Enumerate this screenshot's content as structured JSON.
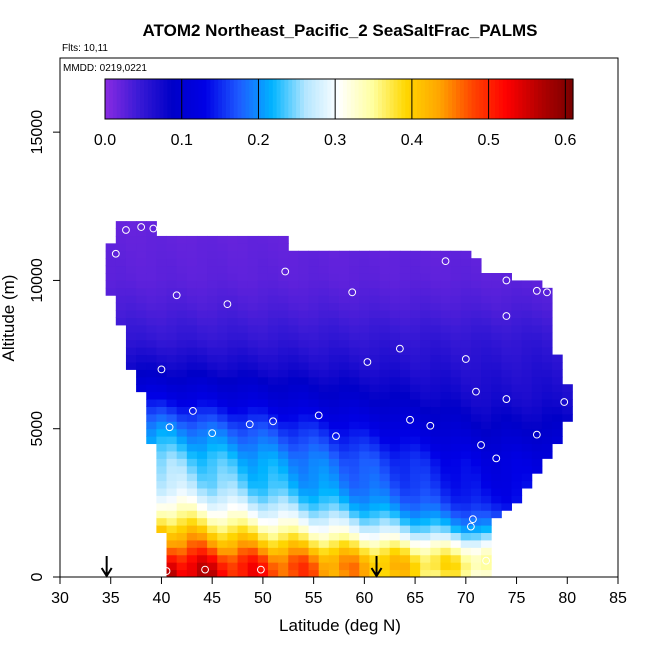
{
  "chart_data": {
    "type": "heatmap",
    "title": "ATOM2 Northeast_Pacific_2 SeaSaltFrac_PALMS",
    "flights_label": "Flts: 10,11",
    "dates_label": "MMDD: 0219,0221",
    "xlabel": "Latitude (deg N)",
    "ylabel": "Altitude (m)",
    "xlim": [
      30,
      85
    ],
    "ylim": [
      0,
      17500
    ],
    "x_ticks": [
      30,
      35,
      40,
      45,
      50,
      55,
      60,
      65,
      70,
      75,
      80,
      85
    ],
    "x_tick_labels": [
      "30",
      "35",
      "40",
      "45",
      "50",
      "55",
      "60",
      "65",
      "70",
      "75",
      "80",
      "85"
    ],
    "y_ticks": [
      0,
      5000,
      10000,
      15000
    ],
    "y_tick_labels": [
      "0",
      "5000",
      "10000",
      "15000"
    ],
    "colorbar": {
      "min": 0.0,
      "max": 0.61,
      "ticks": [
        0.0,
        0.1,
        0.2,
        0.3,
        0.4,
        0.5,
        0.6
      ],
      "tick_labels": [
        "0.0",
        "0.1",
        "0.2",
        "0.3",
        "0.4",
        "0.5",
        "0.6"
      ],
      "colors": [
        "#8a2be2",
        "#3a1ad6",
        "#0000c8",
        "#0000e6",
        "#1e5aff",
        "#00b4ff",
        "#b4e6ff",
        "#ffffff",
        "#ffffa0",
        "#ffd700",
        "#ffa500",
        "#ff4500",
        "#ff0000",
        "#b40000",
        "#780000"
      ]
    },
    "grid_cell": {
      "dlat": 1.0,
      "dalt": 250
    },
    "domain_top": [
      [
        34.5,
        10400
      ],
      [
        35.5,
        11900
      ],
      [
        39,
        11900
      ],
      [
        40,
        11300
      ],
      [
        52,
        11300
      ],
      [
        53,
        10900
      ],
      [
        70,
        10900
      ],
      [
        72,
        10200
      ],
      [
        78.5,
        9700
      ],
      [
        79,
        7500
      ],
      [
        80,
        6500
      ],
      [
        80.5,
        5800
      ]
    ],
    "domain_bottom": [
      [
        34.5,
        10400
      ],
      [
        35,
        9700
      ],
      [
        36,
        8500
      ],
      [
        37,
        7000
      ],
      [
        38.5,
        6000
      ],
      [
        39,
        4500
      ],
      [
        39.5,
        3000
      ],
      [
        40,
        1500
      ],
      [
        40,
        0
      ],
      [
        72,
        0
      ],
      [
        72,
        1300
      ],
      [
        73,
        2000
      ],
      [
        75,
        2500
      ],
      [
        77,
        3500
      ],
      [
        79,
        4500
      ],
      [
        80.5,
        5800
      ]
    ],
    "field_profile": [
      {
        "alt": 0,
        "south": 0.58,
        "north": 0.33
      },
      {
        "alt": 500,
        "south": 0.55,
        "north": 0.36
      },
      {
        "alt": 1000,
        "south": 0.48,
        "north": 0.31
      },
      {
        "alt": 1500,
        "south": 0.43,
        "north": 0.22
      },
      {
        "alt": 2000,
        "south": 0.37,
        "north": 0.17
      },
      {
        "alt": 2500,
        "south": 0.32,
        "north": 0.14
      },
      {
        "alt": 3000,
        "south": 0.28,
        "north": 0.13
      },
      {
        "alt": 4000,
        "south": 0.25,
        "north": 0.12
      },
      {
        "alt": 5000,
        "south": 0.2,
        "north": 0.09
      },
      {
        "alt": 6000,
        "south": 0.13,
        "north": 0.07
      },
      {
        "alt": 7000,
        "south": 0.08,
        "north": 0.06
      },
      {
        "alt": 8000,
        "south": 0.05,
        "north": 0.05
      },
      {
        "alt": 9000,
        "south": 0.035,
        "north": 0.035
      },
      {
        "alt": 10000,
        "south": 0.025,
        "north": 0.025
      },
      {
        "alt": 12000,
        "south": 0.02,
        "north": 0.02
      }
    ],
    "samples": [
      [
        35.5,
        10900
      ],
      [
        36.5,
        11700
      ],
      [
        38,
        11800
      ],
      [
        39.2,
        11750
      ],
      [
        41.5,
        9500
      ],
      [
        46.5,
        9200
      ],
      [
        52.2,
        10300
      ],
      [
        58.8,
        9600
      ],
      [
        68,
        10650
      ],
      [
        74,
        10000
      ],
      [
        77,
        9650
      ],
      [
        78,
        9600
      ],
      [
        74,
        8800
      ],
      [
        63.5,
        7700
      ],
      [
        60.3,
        7250
      ],
      [
        70,
        7350
      ],
      [
        40,
        7000
      ],
      [
        71,
        6250
      ],
      [
        74,
        6000
      ],
      [
        79.7,
        5900
      ],
      [
        43.1,
        5600
      ],
      [
        55.5,
        5450
      ],
      [
        40.8,
        5050
      ],
      [
        45,
        4850
      ],
      [
        48.7,
        5150
      ],
      [
        51,
        5250
      ],
      [
        57.2,
        4750
      ],
      [
        64.5,
        5300
      ],
      [
        66.5,
        5100
      ],
      [
        71.5,
        4450
      ],
      [
        77,
        4800
      ],
      [
        73,
        4000
      ],
      [
        70.7,
        1950
      ],
      [
        70.5,
        1700
      ],
      [
        72,
        550
      ],
      [
        40.5,
        200
      ],
      [
        44.3,
        250
      ],
      [
        49.8,
        250
      ]
    ],
    "flight_markers": [
      34.6,
      61.2
    ]
  }
}
